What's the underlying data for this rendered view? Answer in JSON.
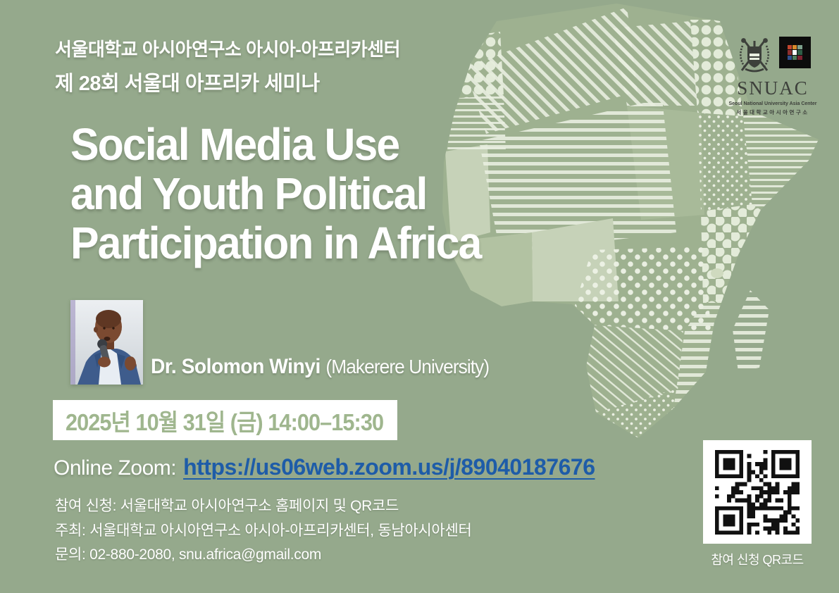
{
  "header": {
    "org": "서울대학교 아시아연구소 아시아-아프리카센터",
    "series": "제 28회 서울대 아프리카 세미나"
  },
  "title": {
    "lines": [
      "Social Media Use",
      "and Youth Political",
      "Participation in Africa"
    ]
  },
  "speaker": {
    "name": "Dr. Solomon Winyi",
    "affiliation": "(Makerere University)"
  },
  "schedule": {
    "datetime": "2025년 10월 31일 (금) 14:00–15:30"
  },
  "online": {
    "label": "Online Zoom:",
    "url": "https://us06web.zoom.us/j/89040187676"
  },
  "details": {
    "registration": "참여 신청: 서울대학교 아시아연구소 홈페이지 및 QR코드",
    "registration_mark": "_",
    "host": "주최: 서울대학교 아시아연구소 아시아-아프리카센터, 동남아시아센터",
    "contact": "문의: 02-880-2080, snu.africa@gmail.com"
  },
  "qr": {
    "caption": "참여 신청 QR코드"
  },
  "logo": {
    "wordmark": "SNUAC",
    "subtitle_en": "Seoul National University Asia Center",
    "subtitle_ko": "서울대학교아시아연구소"
  },
  "colors": {
    "background": "#95a98c",
    "panel_white": "#ffffff",
    "date_green": "#9fb68e",
    "link_blue": "#1e5ca8",
    "logo_dark": "#3d403b",
    "qr_black": "#111111"
  }
}
